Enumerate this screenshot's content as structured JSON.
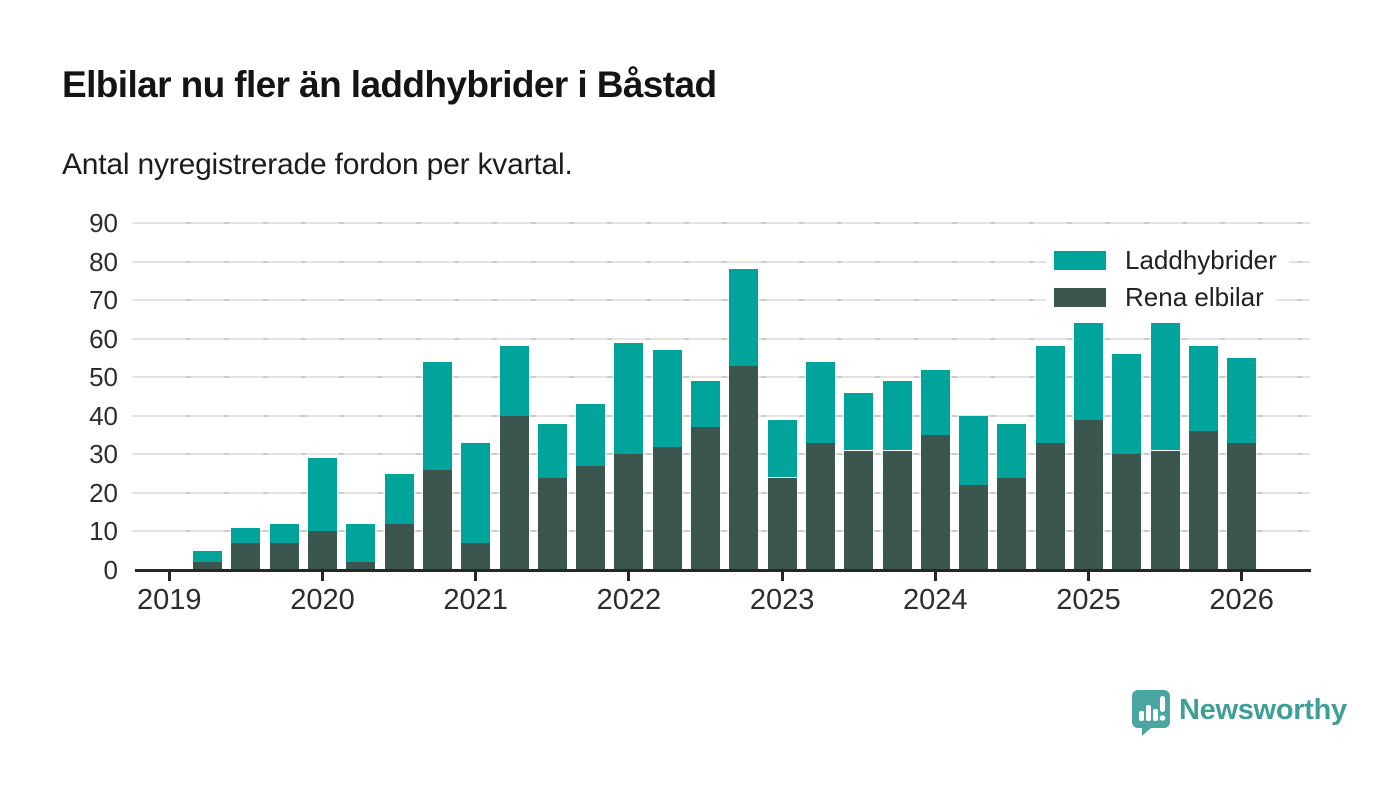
{
  "header": {
    "title": "Elbilar nu fler än laddhybrider i Båstad",
    "subtitle": "Antal nyregistrerade fordon per kvartal."
  },
  "legend": {
    "position": "top-right",
    "items": [
      {
        "label": "Laddhybrider",
        "color": "#00a49a"
      },
      {
        "label": "Rena elbilar",
        "color": "#3a564f"
      }
    ]
  },
  "brand": {
    "name": "Newsworthy",
    "icon": "newsworthy-speech-bubble-bar-chart-icon",
    "color": "#3f9e98"
  },
  "colors": {
    "laddhybrider": "#00a49a",
    "rena_elbilar": "#3a564f",
    "axis": "#262626",
    "gridline": "#e4e4e4",
    "text": "#2d2d2d",
    "background": "#ffffff"
  },
  "chart_data": {
    "type": "bar",
    "stacked": true,
    "title": "Elbilar nu fler än laddhybrider i Båstad",
    "subtitle": "Antal nyregistrerade fordon per kvartal.",
    "x": [
      "2019 Q2",
      "2019 Q3",
      "2019 Q4",
      "2020 Q1",
      "2020 Q2",
      "2020 Q3",
      "2020 Q4",
      "2021 Q1",
      "2021 Q2",
      "2021 Q3",
      "2021 Q4",
      "2022 Q1",
      "2022 Q2",
      "2022 Q3",
      "2022 Q4",
      "2023 Q1",
      "2023 Q2",
      "2023 Q3",
      "2023 Q4",
      "2024 Q1",
      "2024 Q2",
      "2024 Q3",
      "2024 Q4",
      "2025 Q1",
      "2025 Q2",
      "2025 Q3",
      "2025 Q4",
      "2026 Q1"
    ],
    "series": [
      {
        "name": "Rena elbilar",
        "color": "#3a564f",
        "values": [
          2,
          7,
          7,
          10,
          2,
          12,
          26,
          7,
          40,
          24,
          27,
          30,
          32,
          37,
          53,
          24,
          33,
          31,
          31,
          35,
          22,
          24,
          33,
          39,
          30,
          31,
          36,
          33
        ]
      },
      {
        "name": "Laddhybrider",
        "color": "#00a49a",
        "values": [
          3,
          4,
          5,
          19,
          10,
          13,
          28,
          26,
          18,
          14,
          16,
          29,
          25,
          12,
          25,
          15,
          21,
          15,
          18,
          17,
          18,
          14,
          25,
          25,
          26,
          33,
          22,
          22
        ]
      }
    ],
    "totals": [
      5,
      11,
      12,
      29,
      12,
      25,
      54,
      33,
      58,
      38,
      43,
      59,
      57,
      49,
      78,
      39,
      54,
      46,
      49,
      52,
      40,
      38,
      58,
      64,
      56,
      64,
      58,
      55
    ],
    "xticks": [
      "2019",
      "2020",
      "2021",
      "2022",
      "2023",
      "2024",
      "2025",
      "2026"
    ],
    "yticks": [
      0,
      10,
      20,
      30,
      40,
      50,
      60,
      70,
      80,
      90
    ],
    "ylim": [
      0,
      90
    ],
    "grid": "horizontal",
    "legend_position": "top-right"
  }
}
